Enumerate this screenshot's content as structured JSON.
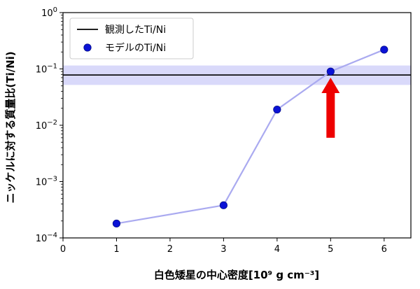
{
  "chart_data": {
    "type": "line",
    "xlabel": "白色矮星の中心密度[10⁹ g cm⁻³]",
    "ylabel": "ニッケルに対する質量比(Ti/Ni)",
    "xlim": [
      0,
      6.5
    ],
    "ylim": [
      0.0001,
      1
    ],
    "yscale": "log",
    "x_ticks": [
      0,
      1,
      2,
      3,
      4,
      5,
      6
    ],
    "y_ticks": [
      {
        "value": 0.0001,
        "base": "10",
        "exp": "−4"
      },
      {
        "value": 0.001,
        "base": "10",
        "exp": "−3"
      },
      {
        "value": 0.01,
        "base": "10",
        "exp": "−2"
      },
      {
        "value": 0.1,
        "base": "10",
        "exp": "−1"
      },
      {
        "value": 1,
        "base": "10",
        "exp": "0"
      }
    ],
    "series": [
      {
        "name": "モデルのTi/Ni",
        "x": [
          1,
          3,
          4,
          5,
          6
        ],
        "y": [
          0.00018,
          0.00038,
          0.019,
          0.09,
          0.22
        ],
        "marker_color": "#0b12d6",
        "line_color": "#aaaaf0"
      }
    ],
    "reference_line": {
      "name": "観測したTi/Ni",
      "value": 0.078,
      "band": [
        0.052,
        0.115
      ],
      "line_color": "#000000",
      "band_color": "#d9d9fa"
    },
    "annotation_arrow": {
      "x": 5,
      "y_tail": 0.006,
      "y_head": 0.07,
      "color": "#ee0000"
    },
    "legend": {
      "placement": "top-left",
      "entries": [
        {
          "label": "観測したTi/Ni",
          "kind": "line"
        },
        {
          "label": "モデルのTi/Ni",
          "kind": "marker"
        }
      ]
    },
    "grid": false
  }
}
